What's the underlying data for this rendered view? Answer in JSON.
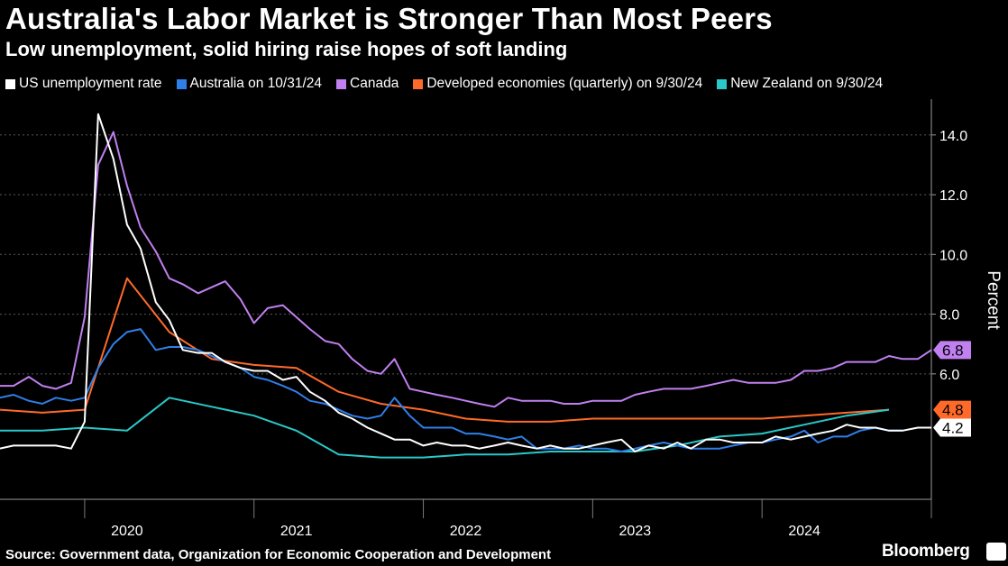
{
  "header": {
    "title": "Australia's Labor Market is Stronger Than Most Peers",
    "subtitle": "Low unemployment, solid hiring raise hopes of soft landing"
  },
  "footer": {
    "source": "Source: Government data, Organization for Economic Cooperation and Development",
    "brand": "Bloomberg"
  },
  "chart_data": {
    "type": "line",
    "title": "Australia's Labor Market is Stronger Than Most Peers",
    "subtitle": "Low unemployment, solid hiring raise hopes of soft landing",
    "ylabel": "Percent",
    "ylim": [
      1.8,
      15.2
    ],
    "xlim": [
      2019.25,
      2024.75
    ],
    "yticks": [
      "14.0",
      "12.0",
      "10.0",
      "8.0",
      "6.0"
    ],
    "ytick_values": [
      14,
      12,
      10,
      8,
      6
    ],
    "xtick_labels": [
      "2020",
      "2021",
      "2022",
      "2023",
      "2024"
    ],
    "xtick_centers": [
      2020.0,
      2021.0,
      2022.0,
      2023.0,
      2024.0
    ],
    "year_boundaries": [
      2019.75,
      2020.75,
      2021.75,
      2022.75,
      2023.75,
      2024.75
    ],
    "grid": true,
    "legend_position": "top",
    "series": [
      {
        "name": "US unemployment rate",
        "color": "#ffffff",
        "end_label": "4.2",
        "x": [
          2019.25,
          2019.33,
          2019.42,
          2019.5,
          2019.58,
          2019.67,
          2019.75,
          2019.83,
          2019.92,
          2020.0,
          2020.08,
          2020.17,
          2020.25,
          2020.33,
          2020.42,
          2020.5,
          2020.58,
          2020.67,
          2020.75,
          2020.83,
          2020.92,
          2021.0,
          2021.08,
          2021.17,
          2021.25,
          2021.33,
          2021.42,
          2021.5,
          2021.58,
          2021.67,
          2021.75,
          2021.83,
          2021.92,
          2022.0,
          2022.08,
          2022.17,
          2022.25,
          2022.33,
          2022.42,
          2022.5,
          2022.58,
          2022.67,
          2022.75,
          2022.83,
          2022.92,
          2023.0,
          2023.08,
          2023.17,
          2023.25,
          2023.33,
          2023.42,
          2023.5,
          2023.58,
          2023.67,
          2023.75,
          2023.83,
          2023.92,
          2024.0,
          2024.08,
          2024.17,
          2024.25,
          2024.33,
          2024.42,
          2024.5,
          2024.58,
          2024.67,
          2024.75
        ],
        "values": [
          3.5,
          3.6,
          3.6,
          3.6,
          3.6,
          3.5,
          4.4,
          14.7,
          13.2,
          11.0,
          10.2,
          8.4,
          7.8,
          6.8,
          6.7,
          6.7,
          6.4,
          6.2,
          6.1,
          6.1,
          5.8,
          5.9,
          5.4,
          5.1,
          4.7,
          4.5,
          4.2,
          4.0,
          3.8,
          3.8,
          3.6,
          3.7,
          3.6,
          3.6,
          3.5,
          3.6,
          3.7,
          3.6,
          3.5,
          3.6,
          3.5,
          3.5,
          3.6,
          3.7,
          3.8,
          3.4,
          3.6,
          3.5,
          3.7,
          3.5,
          3.8,
          3.8,
          3.7,
          3.7,
          3.7,
          3.9,
          3.8,
          3.9,
          4.0,
          4.1,
          4.3,
          4.2,
          4.2,
          4.1,
          4.1,
          4.2,
          4.2
        ]
      },
      {
        "name": "Australia on 10/31/24",
        "color": "#2f7fe8",
        "x": [
          2019.25,
          2019.33,
          2019.42,
          2019.5,
          2019.58,
          2019.67,
          2019.75,
          2019.83,
          2019.92,
          2020.0,
          2020.08,
          2020.17,
          2020.25,
          2020.33,
          2020.42,
          2020.5,
          2020.58,
          2020.67,
          2020.75,
          2020.83,
          2020.92,
          2021.0,
          2021.08,
          2021.17,
          2021.25,
          2021.33,
          2021.42,
          2021.5,
          2021.58,
          2021.67,
          2021.75,
          2021.83,
          2021.92,
          2022.0,
          2022.08,
          2022.17,
          2022.25,
          2022.33,
          2022.42,
          2022.5,
          2022.58,
          2022.67,
          2022.75,
          2022.83,
          2022.92,
          2023.0,
          2023.08,
          2023.17,
          2023.25,
          2023.33,
          2023.42,
          2023.5,
          2023.58,
          2023.67,
          2023.75,
          2023.83,
          2023.92,
          2024.0,
          2024.08,
          2024.17,
          2024.25,
          2024.33,
          2024.42,
          2024.5,
          2024.58
        ],
        "values": [
          5.2,
          5.3,
          5.1,
          5.0,
          5.2,
          5.1,
          5.2,
          6.2,
          7.0,
          7.4,
          7.5,
          6.8,
          6.9,
          6.9,
          6.8,
          6.6,
          6.4,
          6.2,
          5.9,
          5.8,
          5.6,
          5.4,
          5.1,
          5.0,
          4.8,
          4.6,
          4.5,
          4.6,
          5.2,
          4.6,
          4.2,
          4.2,
          4.2,
          4.0,
          4.0,
          3.9,
          3.8,
          3.9,
          3.5,
          3.5,
          3.5,
          3.6,
          3.5,
          3.5,
          3.4,
          3.5,
          3.6,
          3.7,
          3.6,
          3.5,
          3.5,
          3.5,
          3.6,
          3.7,
          3.7,
          3.8,
          3.9,
          4.1,
          3.7,
          3.9,
          3.9,
          4.1,
          4.2,
          4.1,
          4.1
        ]
      },
      {
        "name": "Canada",
        "color": "#c080f0",
        "end_label": "6.8",
        "x": [
          2019.25,
          2019.33,
          2019.42,
          2019.5,
          2019.58,
          2019.67,
          2019.75,
          2019.83,
          2019.92,
          2020.0,
          2020.08,
          2020.17,
          2020.25,
          2020.33,
          2020.42,
          2020.5,
          2020.58,
          2020.67,
          2020.75,
          2020.83,
          2020.92,
          2021.0,
          2021.08,
          2021.17,
          2021.25,
          2021.33,
          2021.42,
          2021.5,
          2021.58,
          2021.67,
          2021.75,
          2021.83,
          2021.92,
          2022.0,
          2022.08,
          2022.17,
          2022.25,
          2022.33,
          2022.42,
          2022.5,
          2022.58,
          2022.67,
          2022.75,
          2022.83,
          2022.92,
          2023.0,
          2023.08,
          2023.17,
          2023.25,
          2023.33,
          2023.42,
          2023.5,
          2023.58,
          2023.67,
          2023.75,
          2023.83,
          2023.92,
          2024.0,
          2024.08,
          2024.17,
          2024.25,
          2024.33,
          2024.42,
          2024.5,
          2024.58,
          2024.67,
          2024.75
        ],
        "values": [
          5.6,
          5.6,
          5.9,
          5.6,
          5.5,
          5.7,
          7.9,
          13.0,
          14.1,
          12.3,
          10.9,
          10.1,
          9.2,
          9.0,
          8.7,
          8.9,
          9.1,
          8.5,
          7.7,
          8.2,
          8.3,
          7.9,
          7.5,
          7.1,
          7.0,
          6.5,
          6.1,
          6.0,
          6.5,
          5.5,
          5.4,
          5.3,
          5.2,
          5.1,
          5.0,
          4.9,
          5.2,
          5.1,
          5.1,
          5.1,
          5.0,
          5.0,
          5.1,
          5.1,
          5.1,
          5.3,
          5.4,
          5.5,
          5.5,
          5.5,
          5.6,
          5.7,
          5.8,
          5.7,
          5.7,
          5.7,
          5.8,
          6.1,
          6.1,
          6.2,
          6.4,
          6.4,
          6.4,
          6.6,
          6.5,
          6.5,
          6.8
        ]
      },
      {
        "name": "Developed economies (quarterly) on 9/30/24",
        "color": "#ff6a2a",
        "end_label": "4.8",
        "x": [
          2019.25,
          2019.5,
          2019.75,
          2020.0,
          2020.25,
          2020.5,
          2020.75,
          2021.0,
          2021.25,
          2021.5,
          2021.75,
          2022.0,
          2022.25,
          2022.5,
          2022.75,
          2023.0,
          2023.25,
          2023.5,
          2023.75,
          2024.0,
          2024.25,
          2024.5
        ],
        "values": [
          4.8,
          4.7,
          4.8,
          9.2,
          7.4,
          6.5,
          6.3,
          6.2,
          5.4,
          5.0,
          4.8,
          4.5,
          4.4,
          4.4,
          4.5,
          4.5,
          4.5,
          4.5,
          4.5,
          4.6,
          4.7,
          4.8
        ]
      },
      {
        "name": "New Zealand on 9/30/24",
        "color": "#2ac8c8",
        "x": [
          2019.25,
          2019.5,
          2019.75,
          2020.0,
          2020.25,
          2020.5,
          2020.75,
          2021.0,
          2021.25,
          2021.5,
          2021.75,
          2022.0,
          2022.25,
          2022.5,
          2022.75,
          2023.0,
          2023.25,
          2023.5,
          2023.75,
          2024.0,
          2024.25,
          2024.5
        ],
        "values": [
          4.1,
          4.1,
          4.2,
          4.1,
          5.2,
          4.9,
          4.6,
          4.1,
          3.3,
          3.2,
          3.2,
          3.3,
          3.3,
          3.4,
          3.4,
          3.4,
          3.6,
          3.9,
          4.0,
          4.3,
          4.6,
          4.8
        ]
      }
    ]
  }
}
